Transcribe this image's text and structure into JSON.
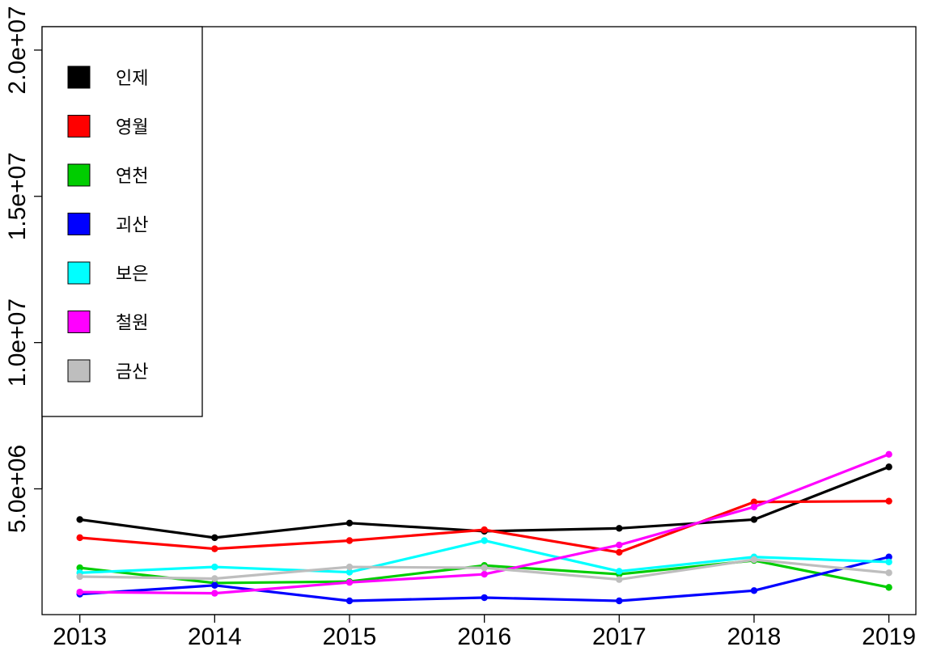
{
  "chart_data": {
    "type": "line",
    "title": "",
    "xlabel": "",
    "ylabel": "",
    "x": [
      2013,
      2014,
      2015,
      2016,
      2017,
      2018,
      2019
    ],
    "x_tick_labels": [
      "2013",
      "2014",
      "2015",
      "2016",
      "2017",
      "2018",
      "2019"
    ],
    "y_tick_labels": [
      "5.0e+06",
      "1.0e+07",
      "1.5e+07",
      "2.0e+07"
    ],
    "y_ticks": [
      5000000,
      10000000,
      15000000,
      20000000
    ],
    "ylim": [
      700000,
      20800000
    ],
    "xlim": [
      2012.72,
      2019.2
    ],
    "grid": false,
    "legend_position": "top-left",
    "series": [
      {
        "name": "인제",
        "color": "#000000",
        "values": [
          3950000,
          3330000,
          3830000,
          3550000,
          3650000,
          3950000,
          5750000
        ]
      },
      {
        "name": "영월",
        "color": "#ff0000",
        "values": [
          3330000,
          2950000,
          3230000,
          3600000,
          2830000,
          4550000,
          4580000
        ]
      },
      {
        "name": "연천",
        "color": "#00cd00",
        "values": [
          2300000,
          1780000,
          1830000,
          2380000,
          2080000,
          2550000,
          1630000
        ]
      },
      {
        "name": "괴산",
        "color": "#0000ff",
        "values": [
          1400000,
          1700000,
          1170000,
          1280000,
          1170000,
          1520000,
          2670000
        ]
      },
      {
        "name": "보은",
        "color": "#00ffff",
        "values": [
          2130000,
          2330000,
          2150000,
          3230000,
          2180000,
          2670000,
          2500000
        ]
      },
      {
        "name": "철원",
        "color": "#ff00ff",
        "values": [
          1470000,
          1430000,
          1800000,
          2080000,
          3080000,
          4380000,
          6180000
        ]
      },
      {
        "name": "금산",
        "color": "#bebebe",
        "values": [
          2000000,
          1930000,
          2330000,
          2300000,
          1900000,
          2580000,
          2130000
        ]
      }
    ]
  }
}
